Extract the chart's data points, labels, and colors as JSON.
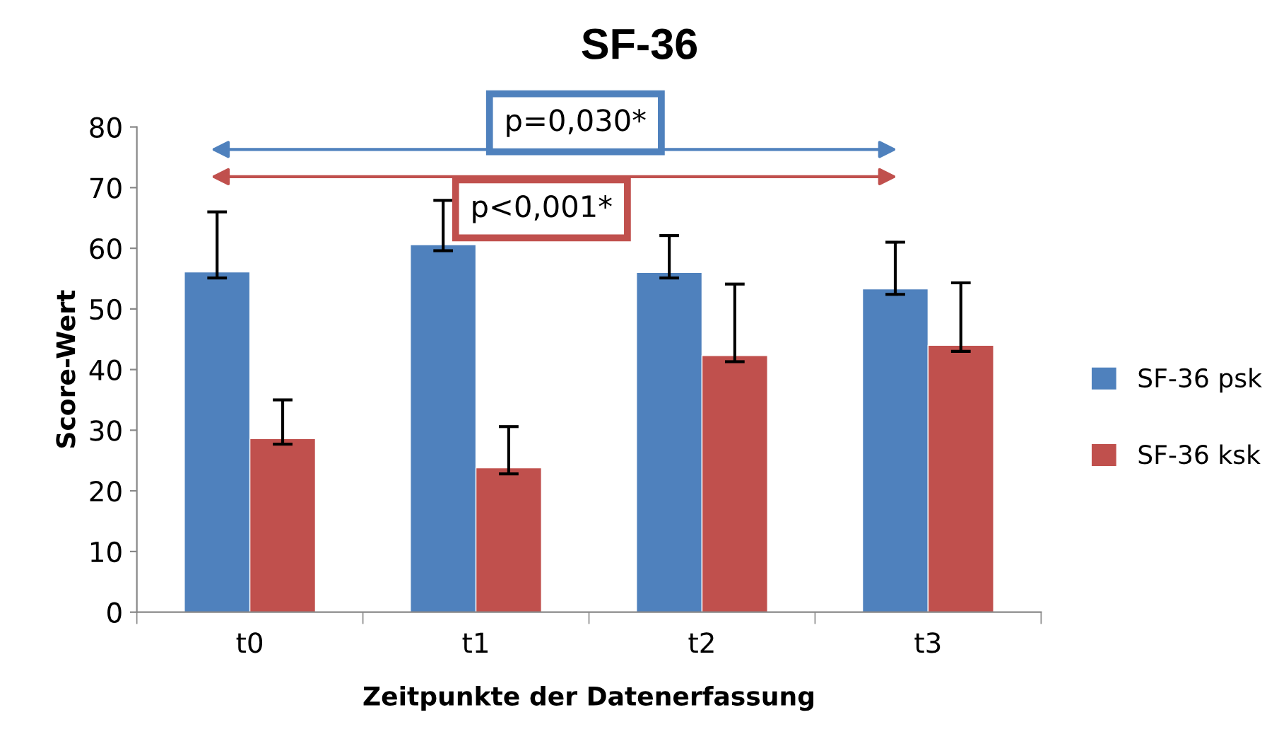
{
  "chart_data": {
    "type": "bar",
    "title": "SF-36",
    "xlabel": "Zeitpunkte der Datenerfassung",
    "ylabel": "Score-Wert",
    "categories": [
      "t0",
      "t1",
      "t2",
      "t3"
    ],
    "series": [
      {
        "name": "SF-36 psk",
        "color": "#4f81bd",
        "values": [
          56.1,
          60.6,
          56.0,
          53.3
        ],
        "errors": [
          [
            55.1,
            66.0
          ],
          [
            59.6,
            67.9
          ],
          [
            55.1,
            62.1
          ],
          [
            52.4,
            61.0
          ]
        ]
      },
      {
        "name": "SF-36 ksk",
        "color": "#c0504d",
        "values": [
          28.6,
          23.8,
          42.3,
          44.0
        ],
        "errors": [
          [
            27.7,
            35.0
          ],
          [
            22.8,
            30.6
          ],
          [
            41.3,
            54.1
          ],
          [
            43.0,
            54.3
          ]
        ]
      }
    ],
    "annotations": [
      "p=0,030*",
      "p<0,001*"
    ],
    "ylim": [
      0,
      80
    ],
    "yticks": [
      0,
      10,
      20,
      30,
      40,
      50,
      60,
      70,
      80
    ],
    "grid": false,
    "legend": "right"
  }
}
